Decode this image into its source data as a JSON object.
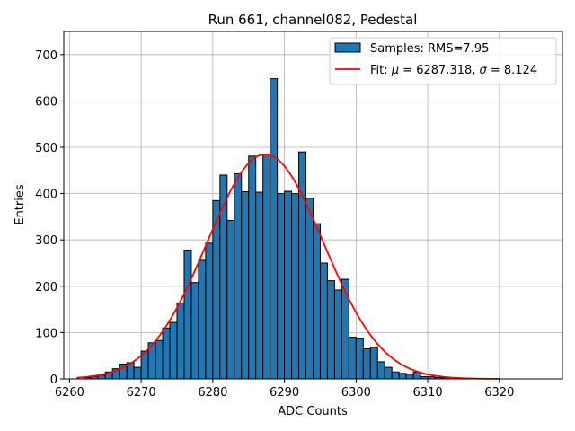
{
  "colors": {
    "bar_fill": "#1f77b4",
    "bar_edge": "#000000",
    "fit_line": "#ff0000",
    "grid": "#b0b0b0"
  },
  "chart_data": {
    "type": "bar",
    "title": "Run 661, channel082, Pedestal",
    "xlabel": "ADC Counts",
    "ylabel": "Entries",
    "xlim": [
      6259.2,
      6328.8
    ],
    "ylim": [
      0,
      750
    ],
    "xticks": [
      6260,
      6270,
      6280,
      6290,
      6300,
      6310,
      6320
    ],
    "yticks": [
      0,
      100,
      200,
      300,
      400,
      500,
      600,
      700
    ],
    "grid": true,
    "legend_position": "upper right",
    "bin_width": 1,
    "histogram": {
      "name": "Samples: RMS=7.95",
      "bin_left_edges": [
        6262,
        6263,
        6264,
        6265,
        6266,
        6267,
        6268,
        6269,
        6270,
        6271,
        6272,
        6273,
        6274,
        6275,
        6276,
        6277,
        6278,
        6279,
        6280,
        6281,
        6282,
        6283,
        6284,
        6285,
        6286,
        6287,
        6288,
        6289,
        6290,
        6291,
        6292,
        6293,
        6294,
        6295,
        6296,
        6297,
        6298,
        6299,
        6300,
        6301,
        6302,
        6303,
        6304,
        6305,
        6306,
        6307,
        6308,
        6309,
        6310,
        6311,
        6312
      ],
      "counts": [
        3,
        5,
        8,
        15,
        22,
        32,
        35,
        25,
        60,
        78,
        83,
        110,
        122,
        164,
        278,
        208,
        256,
        293,
        385,
        440,
        342,
        443,
        404,
        481,
        403,
        485,
        648,
        400,
        405,
        400,
        490,
        390,
        335,
        250,
        212,
        192,
        215,
        90,
        88,
        65,
        68,
        37,
        25,
        15,
        12,
        10,
        15,
        5,
        5,
        3,
        2
      ]
    },
    "fit": {
      "name": "Fit: μ = 6287.318, σ = 8.124",
      "label_parts": {
        "prefix": "Fit: ",
        "mu_symbol": "μ",
        "mu_text": " = 6287.318, ",
        "sigma_symbol": "σ",
        "sigma_text": " = 8.124"
      },
      "type": "gaussian",
      "mu": 6287.318,
      "sigma": 8.124,
      "amplitude": 485,
      "x_range": [
        6261,
        6320
      ]
    }
  }
}
